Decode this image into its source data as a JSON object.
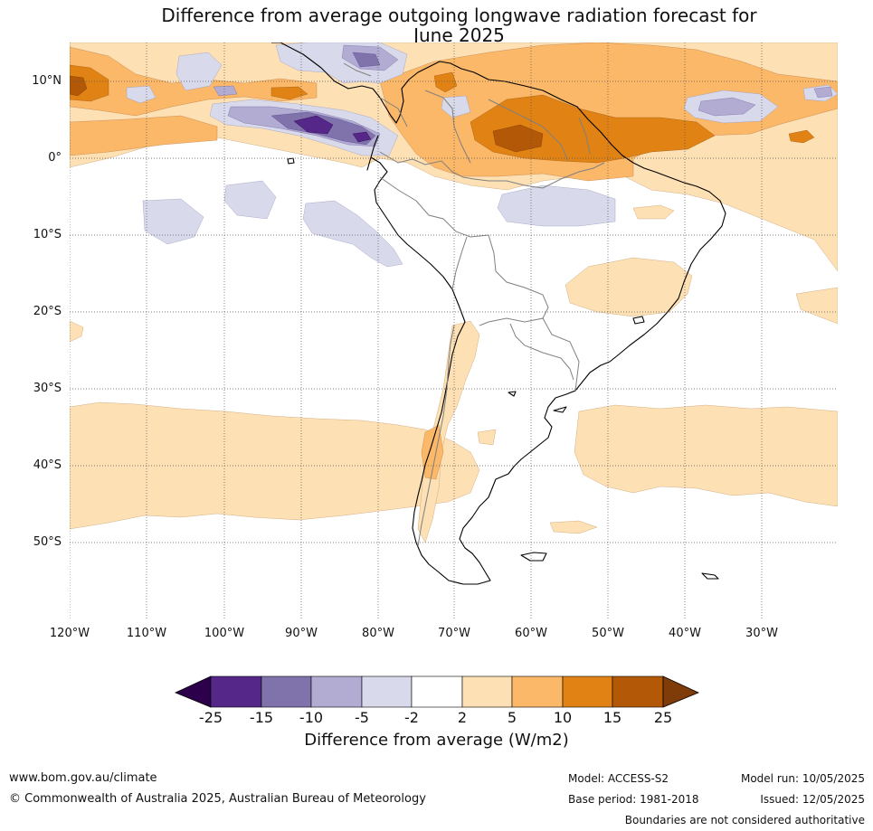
{
  "title": {
    "line1": "Difference from average outgoing longwave radiation forecast for",
    "line2": "June 2025"
  },
  "map": {
    "lat_labels": [
      "10°N",
      "0°",
      "10°S",
      "20°S",
      "30°S",
      "40°S",
      "50°S"
    ],
    "lon_labels": [
      "120°W",
      "110°W",
      "100°W",
      "90°W",
      "80°W",
      "70°W",
      "60°W",
      "50°W",
      "40°W",
      "30°W"
    ],
    "colors": {
      "land_outline": "#000000",
      "borders": "#808080",
      "gridlines": "#555555",
      "pos_2_5": "#fde0b4",
      "pos_5_10": "#fab868",
      "pos_10_15": "#e08214",
      "pos_15_25": "#b35806",
      "neg_2_5": "#d8daeb",
      "neg_5_10": "#b2abd2",
      "neg_10_15": "#8073ac",
      "neg_15_25": "#542788"
    }
  },
  "colorbar": {
    "ticks": [
      "-25",
      "-15",
      "-10",
      "-5",
      "-2",
      "2",
      "5",
      "10",
      "15",
      "25"
    ],
    "colors": [
      "#2d004b",
      "#542788",
      "#8073ac",
      "#b2abd2",
      "#d8daeb",
      "#ffffff",
      "#fde0b4",
      "#fab868",
      "#e08214",
      "#b35806",
      "#7f3b08"
    ],
    "label": "Difference from average (W/m2)"
  },
  "footer": {
    "website": "www.bom.gov.au/climate",
    "copyright": "© Commonwealth of Australia 2025, Australian Bureau of Meteorology",
    "model": "Model: ACCESS-S2",
    "base_period": "Base period: 1981-2018",
    "model_run": "Model run: 10/05/2025",
    "issued": "Issued: 12/05/2025",
    "disclaimer": "Boundaries are not considered authoritative"
  }
}
